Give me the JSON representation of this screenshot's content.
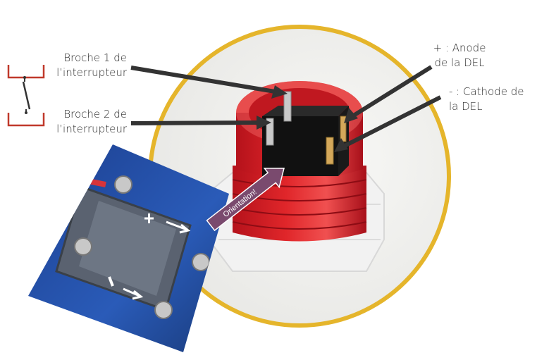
{
  "labels": {
    "pin1": [
      "Broche 1 de",
      "l’interrupteur"
    ],
    "pin2": [
      "Broche 2 de",
      "l’interrupteur"
    ],
    "anode": [
      "+ : Anode",
      "de la DEL"
    ],
    "cathode": [
      "- : Cathode de",
      "la DEL"
    ],
    "orientation": "Orientation!"
  },
  "inset_markings": {
    "plus": "+",
    "minus": "-"
  },
  "colors": {
    "circle_border": "#E5B52B",
    "button_red": "#D81B1B",
    "arrow": "#333333",
    "orientation_arrow": "#7A4A6E",
    "schematic_red": "#C0392B"
  }
}
